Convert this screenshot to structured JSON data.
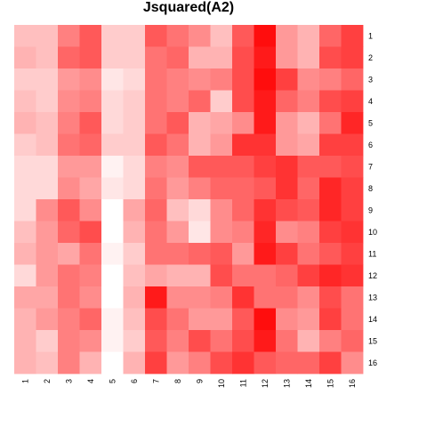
{
  "chart_data": {
    "type": "heatmap",
    "title": "Jsquared(A2)",
    "x_labels": [
      "1",
      "2",
      "3",
      "4",
      "5",
      "6",
      "7",
      "8",
      "9",
      "10",
      "11",
      "12",
      "13",
      "14",
      "15",
      "16"
    ],
    "y_labels": [
      "1",
      "2",
      "3",
      "4",
      "5",
      "6",
      "7",
      "8",
      "9",
      "10",
      "11",
      "12",
      "13",
      "14",
      "15",
      "16"
    ],
    "color_low": "#ffffff",
    "color_high": "#ff0000",
    "value_range": [
      0,
      1
    ],
    "values": [
      [
        0.25,
        0.25,
        0.5,
        0.65,
        0.2,
        0.2,
        0.65,
        0.55,
        0.45,
        0.25,
        0.65,
        0.95,
        0.4,
        0.3,
        0.6,
        0.75
      ],
      [
        0.3,
        0.25,
        0.6,
        0.65,
        0.2,
        0.2,
        0.55,
        0.6,
        0.3,
        0.3,
        0.7,
        0.9,
        0.4,
        0.3,
        0.7,
        0.75
      ],
      [
        0.2,
        0.2,
        0.4,
        0.45,
        0.1,
        0.15,
        0.55,
        0.5,
        0.45,
        0.5,
        0.7,
        0.95,
        0.75,
        0.45,
        0.5,
        0.6
      ],
      [
        0.25,
        0.2,
        0.45,
        0.5,
        0.15,
        0.2,
        0.55,
        0.5,
        0.6,
        0.2,
        0.7,
        0.9,
        0.6,
        0.5,
        0.7,
        0.75
      ],
      [
        0.3,
        0.25,
        0.5,
        0.65,
        0.15,
        0.2,
        0.55,
        0.65,
        0.3,
        0.35,
        0.45,
        0.9,
        0.4,
        0.3,
        0.55,
        0.85
      ],
      [
        0.2,
        0.25,
        0.55,
        0.6,
        0.2,
        0.2,
        0.65,
        0.55,
        0.3,
        0.4,
        0.8,
        0.8,
        0.4,
        0.35,
        0.75,
        0.75
      ],
      [
        0.15,
        0.15,
        0.4,
        0.4,
        0.05,
        0.15,
        0.5,
        0.45,
        0.65,
        0.65,
        0.65,
        0.75,
        0.8,
        0.65,
        0.65,
        0.7
      ],
      [
        0.15,
        0.15,
        0.45,
        0.35,
        0.1,
        0.15,
        0.55,
        0.4,
        0.5,
        0.6,
        0.6,
        0.65,
        0.8,
        0.6,
        0.85,
        0.75
      ],
      [
        0.15,
        0.45,
        0.65,
        0.45,
        0.0,
        0.35,
        0.6,
        0.25,
        0.15,
        0.45,
        0.6,
        0.8,
        0.7,
        0.65,
        0.85,
        0.75
      ],
      [
        0.25,
        0.4,
        0.6,
        0.7,
        0.0,
        0.3,
        0.55,
        0.4,
        0.1,
        0.45,
        0.5,
        0.85,
        0.45,
        0.5,
        0.75,
        0.8
      ],
      [
        0.3,
        0.4,
        0.35,
        0.55,
        0.05,
        0.2,
        0.55,
        0.55,
        0.6,
        0.65,
        0.4,
        0.9,
        0.75,
        0.55,
        0.65,
        0.75
      ],
      [
        0.15,
        0.4,
        0.55,
        0.5,
        0.0,
        0.25,
        0.35,
        0.3,
        0.3,
        0.7,
        0.55,
        0.55,
        0.6,
        0.75,
        0.85,
        0.8
      ],
      [
        0.35,
        0.35,
        0.55,
        0.45,
        0.0,
        0.3,
        0.9,
        0.45,
        0.45,
        0.5,
        0.8,
        0.55,
        0.55,
        0.45,
        0.7,
        0.55
      ],
      [
        0.3,
        0.4,
        0.5,
        0.6,
        0.05,
        0.25,
        0.7,
        0.55,
        0.4,
        0.4,
        0.65,
        0.95,
        0.45,
        0.4,
        0.75,
        0.55
      ],
      [
        0.3,
        0.2,
        0.5,
        0.45,
        0.05,
        0.2,
        0.65,
        0.5,
        0.7,
        0.55,
        0.7,
        0.9,
        0.55,
        0.3,
        0.5,
        0.6
      ],
      [
        0.3,
        0.25,
        0.5,
        0.3,
        0.0,
        0.3,
        0.75,
        0.4,
        0.5,
        0.7,
        0.8,
        0.65,
        0.6,
        0.6,
        0.75,
        0.45
      ]
    ]
  }
}
